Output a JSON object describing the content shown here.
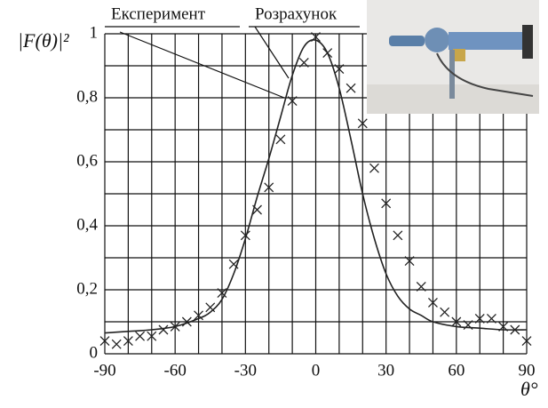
{
  "chart_data": {
    "type": "line",
    "y_label": "|F(θ)|²",
    "x_label": "θ°",
    "xlim": [
      -90,
      90
    ],
    "ylim": [
      0,
      1
    ],
    "xticks": [
      -90,
      -60,
      -30,
      0,
      30,
      60,
      90
    ],
    "yticks": [
      0,
      {
        "value": 0.2,
        "label": "0,2"
      },
      {
        "value": 0.4,
        "label": "0,4"
      },
      {
        "value": 0.6,
        "label": "0,6"
      },
      {
        "value": 0.8,
        "label": "0,8"
      },
      1
    ],
    "xgrid": [
      -80,
      -70,
      -50,
      -40,
      -20,
      -10,
      10,
      20,
      40,
      50,
      70,
      80
    ],
    "ygrid": [
      0.1,
      0.3,
      0.5,
      0.7,
      0.9
    ],
    "grid": true,
    "series": [
      {
        "name": "Експеримент",
        "marker": "x",
        "color": "#222222",
        "x": [
          -90,
          -85,
          -80,
          -75,
          -70,
          -65,
          -60,
          -55,
          -50,
          -45,
          -40,
          -35,
          -30,
          -25,
          -20,
          -15,
          -10,
          -5,
          0,
          5,
          10,
          15,
          20,
          25,
          30,
          35,
          40,
          45,
          50,
          55,
          60,
          65,
          70,
          75,
          80,
          85,
          90
        ],
        "values": [
          0.04,
          0.03,
          0.04,
          0.055,
          0.055,
          0.075,
          0.085,
          0.1,
          0.12,
          0.145,
          0.19,
          0.28,
          0.37,
          0.45,
          0.52,
          0.67,
          0.79,
          0.91,
          0.99,
          0.94,
          0.89,
          0.83,
          0.72,
          0.58,
          0.47,
          0.37,
          0.29,
          0.21,
          0.16,
          0.13,
          0.1,
          0.09,
          0.11,
          0.11,
          0.085,
          0.075,
          0.04
        ]
      },
      {
        "name": "Розрахунок",
        "marker": "none",
        "color": "#222222",
        "x": [
          -90,
          -80,
          -70,
          -60,
          -50,
          -45,
          -40,
          -35,
          -30,
          -25,
          -20,
          -15,
          -10,
          -5,
          0,
          5,
          10,
          15,
          20,
          25,
          30,
          35,
          40,
          45,
          50,
          60,
          70,
          80,
          90
        ],
        "values": [
          0.065,
          0.07,
          0.075,
          0.085,
          0.11,
          0.13,
          0.17,
          0.25,
          0.36,
          0.49,
          0.61,
          0.74,
          0.87,
          0.96,
          0.98,
          0.94,
          0.83,
          0.67,
          0.5,
          0.36,
          0.25,
          0.18,
          0.14,
          0.12,
          0.1,
          0.085,
          0.08,
          0.075,
          0.075
        ]
      }
    ]
  }
}
